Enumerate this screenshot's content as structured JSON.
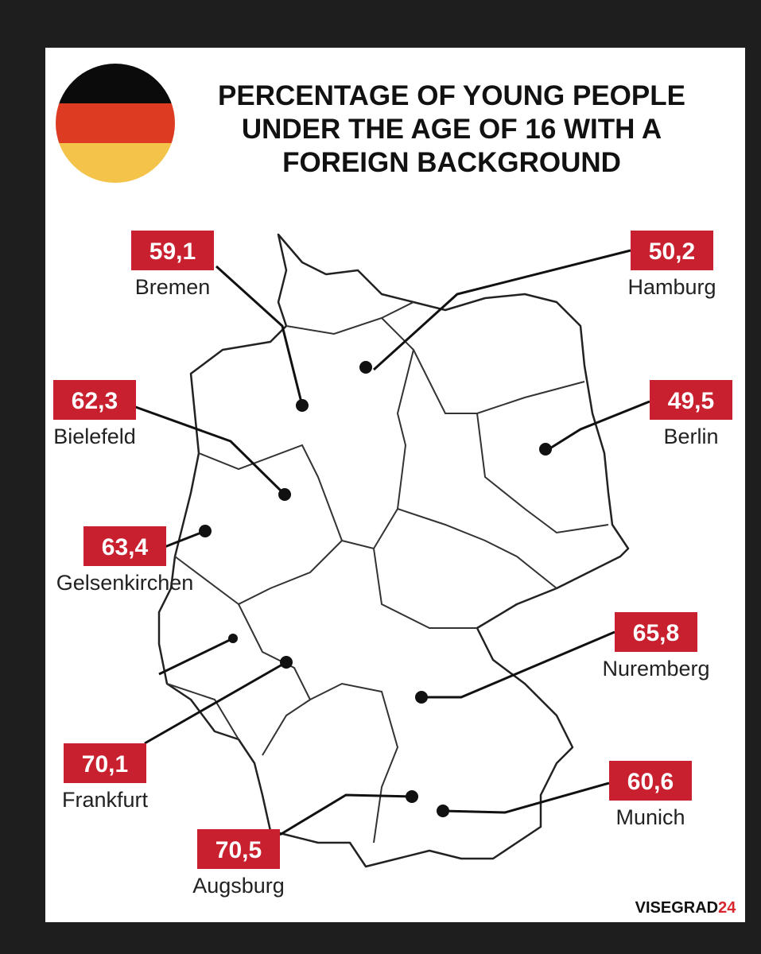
{
  "title": [
    "PERCENTAGE OF YOUNG PEOPLE",
    "UNDER THE AGE OF 16 WITH A",
    "FOREIGN BACKGROUND"
  ],
  "cities": [
    {
      "name": "Bremen",
      "value": "59,1"
    },
    {
      "name": "Hamburg",
      "value": "50,2"
    },
    {
      "name": "Bielefeld",
      "value": "62,3"
    },
    {
      "name": "Berlin",
      "value": "49,5"
    },
    {
      "name": "Gelsenkirchen",
      "value": "63,4"
    },
    {
      "name": "Nuremberg",
      "value": "65,8"
    },
    {
      "name": "Frankfurt",
      "value": "70,1"
    },
    {
      "name": "Munich",
      "value": "60,6"
    },
    {
      "name": "Augsburg",
      "value": "70,5"
    }
  ],
  "source": {
    "brand": "VISEGRAD",
    "number": "24"
  }
}
